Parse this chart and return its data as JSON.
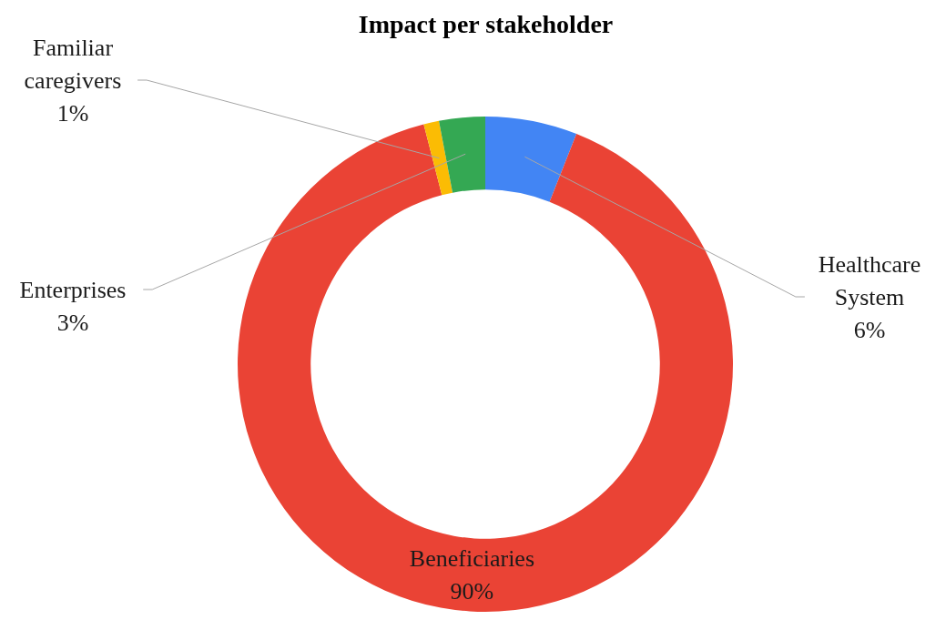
{
  "chart_data": {
    "type": "donut",
    "title": "Impact per stakeholder",
    "categories": [
      "Healthcare System",
      "Beneficiaries",
      "Familiar caregivers",
      "Enterprises"
    ],
    "values": [
      6,
      90,
      1,
      3
    ],
    "colors": [
      "#4285f4",
      "#ea4335",
      "#fbbc04",
      "#34a853"
    ],
    "value_labels": [
      "6%",
      "90%",
      "1%",
      "3%"
    ]
  }
}
